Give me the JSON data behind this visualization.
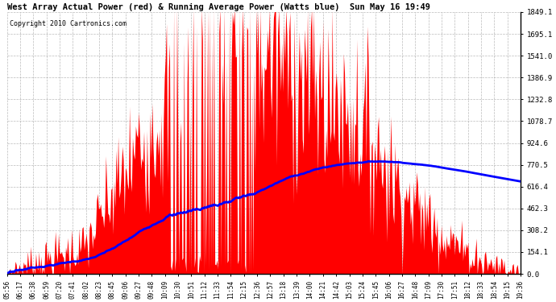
{
  "title": "West Array Actual Power (red) & Running Average Power (Watts blue)  Sun May 16 19:49",
  "copyright": "Copyright 2010 Cartronics.com",
  "yticks": [
    0.0,
    154.1,
    308.2,
    462.3,
    616.4,
    770.5,
    924.6,
    1078.7,
    1232.8,
    1386.9,
    1541.0,
    1695.1,
    1849.1
  ],
  "ymax": 1849.1,
  "ymin": 0.0,
  "background_color": "#ffffff",
  "fill_color": "#ff0000",
  "avg_color": "#0000ff",
  "grid_color": "#aaaaaa",
  "title_color": "#000000",
  "xtick_labels": [
    "05:56",
    "06:17",
    "06:38",
    "06:59",
    "07:20",
    "07:41",
    "08:02",
    "08:23",
    "08:45",
    "09:06",
    "09:27",
    "09:48",
    "10:09",
    "10:30",
    "10:51",
    "11:12",
    "11:33",
    "11:54",
    "12:15",
    "12:36",
    "12:57",
    "13:18",
    "13:39",
    "14:00",
    "14:21",
    "14:42",
    "15:03",
    "15:24",
    "15:45",
    "16:06",
    "16:27",
    "16:48",
    "17:09",
    "17:30",
    "17:51",
    "18:12",
    "18:33",
    "18:54",
    "19:15",
    "19:36"
  ],
  "figwidth": 6.9,
  "figheight": 3.75,
  "dpi": 100
}
